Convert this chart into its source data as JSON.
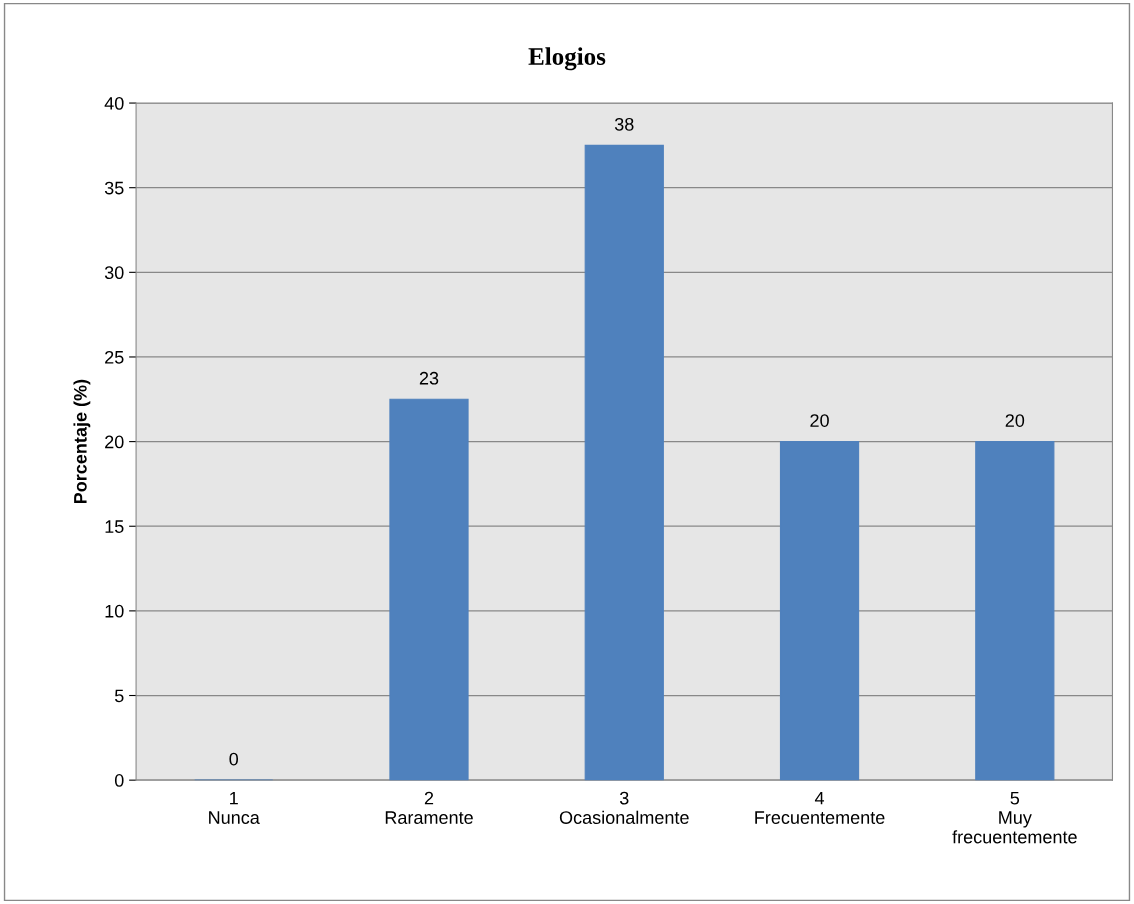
{
  "chart_data": {
    "type": "bar",
    "title": "Elogios",
    "ylabel": "Porcentaje (%)",
    "categories": [
      "1\nNunca",
      "2\nRaramente",
      "3\nOcasionalmente",
      "4\nFrecuentemente",
      "5\nMuy\nfrecuentemente"
    ],
    "values": [
      0,
      22.5,
      37.5,
      20,
      20
    ],
    "value_labels": [
      "0",
      "23",
      "38",
      "20",
      "20"
    ],
    "color": "#4f81bd",
    "ylim": [
      0,
      40
    ],
    "yticks": [
      0,
      5,
      10,
      15,
      20,
      25,
      30,
      35,
      40
    ],
    "grid": "y",
    "legend": false
  }
}
